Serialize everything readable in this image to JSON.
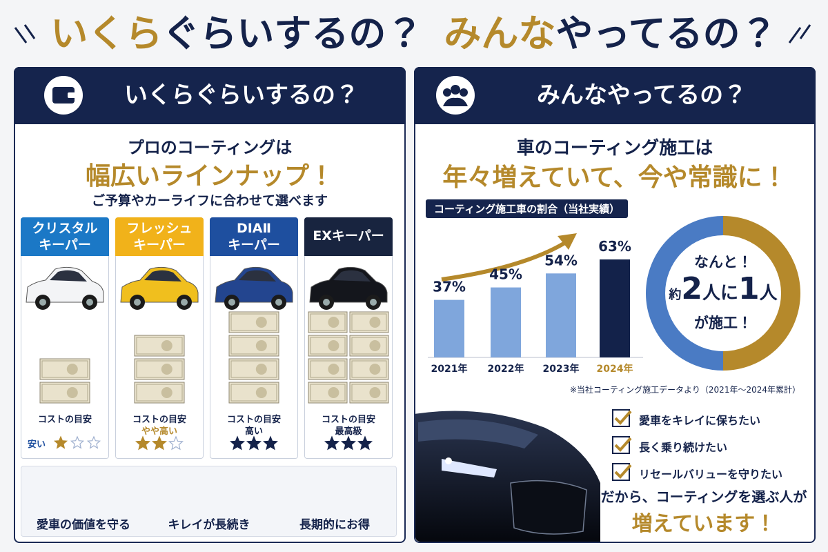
{
  "header": {
    "left_accent": "いくら",
    "left_rest": "ぐらいするの？",
    "right_accent": "みんな",
    "right_rest": "やってるの？"
  },
  "left": {
    "heading": "いくらぐらいするの？",
    "lead": "プロのコーティングは",
    "headline": "幅広いラインナップ！",
    "sub": "ご予算やカーライフに合わせて選べます",
    "cards": [
      {
        "name": [
          "クリスタル",
          "キーパー"
        ],
        "color": "#1b78c6",
        "cost_label": "コストの目安",
        "level": "安い"
      },
      {
        "name": [
          "フレッシュ",
          "キーパー"
        ],
        "color": "#f1b21a",
        "cost_label": "コストの目安",
        "level": "やや高い"
      },
      {
        "name": [
          "DIAⅡ",
          "キーパー"
        ],
        "color": "#1e4f9f",
        "cost_label": "コストの目安",
        "level": "高い"
      },
      {
        "name": [
          "EXキーパー"
        ],
        "color": "#18243f",
        "cost_label": "コストの目安",
        "level": "最高級"
      }
    ],
    "features": [
      "愛車の価値を守る",
      "キレイが長続き",
      "長期的にお得"
    ]
  },
  "right": {
    "heading": "みんなやってるの？",
    "lead": "車のコーティング施工は",
    "headline": "年々増えていて、今や常識に！",
    "donut": {
      "line1": "なんと！",
      "prefix": "約",
      "num1": "2",
      "mid": "人に",
      "num2": "1",
      "suffix": "人",
      "line3": "が施工！"
    },
    "note": "※当社コーティング施工データより（2021年～2024年累計）",
    "checks": [
      "愛車をキレイに保ちたい",
      "長く乗り続けたい",
      "リセールバリューを守りたい"
    ],
    "closing": [
      "だから、コーティングを選ぶ人が",
      "増えています！"
    ]
  },
  "chart_data": {
    "type": "bar",
    "title": "コーティング施工車の割合（当社実績）",
    "categories": [
      "2021年",
      "2022年",
      "2023年",
      "2024年"
    ],
    "values": [
      37,
      45,
      54,
      63
    ],
    "value_labels": [
      "37%",
      "45%",
      "54%",
      "63%"
    ],
    "colors": [
      "#7fa6dc",
      "#7fa6dc",
      "#7fa6dc",
      "#13224a"
    ],
    "category_colors": [
      "#14224a",
      "#14224a",
      "#14224a",
      "#b5892b"
    ]
  }
}
